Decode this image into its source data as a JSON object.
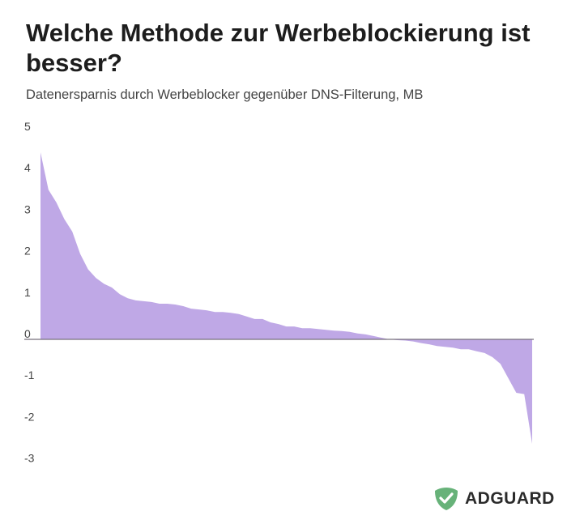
{
  "chart_data": {
    "type": "area",
    "title": "Welche Methode zur Werbeblockierung ist besser?",
    "subtitle": "Datenersparnis durch Werbeblocker gegenüber DNS-Filterung, MB",
    "xlabel": "",
    "ylabel": "",
    "ylim": [
      -3,
      5
    ],
    "yticks": [
      "5",
      "4",
      "3",
      "2",
      "1",
      "0",
      "-1",
      "-2",
      "-3"
    ],
    "grid": false,
    "color": "#bfa8e6",
    "baseline_color": "#77707c",
    "values": [
      4.51,
      3.61,
      3.3,
      2.9,
      2.6,
      2.06,
      1.69,
      1.48,
      1.34,
      1.25,
      1.09,
      0.99,
      0.94,
      0.92,
      0.9,
      0.86,
      0.86,
      0.84,
      0.8,
      0.74,
      0.72,
      0.7,
      0.66,
      0.66,
      0.64,
      0.61,
      0.55,
      0.49,
      0.49,
      0.41,
      0.37,
      0.31,
      0.31,
      0.27,
      0.27,
      0.25,
      0.23,
      0.21,
      0.2,
      0.18,
      0.14,
      0.12,
      0.08,
      0.04,
      0.0,
      -0.02,
      -0.03,
      -0.05,
      -0.09,
      -0.12,
      -0.16,
      -0.18,
      -0.2,
      -0.24,
      -0.24,
      -0.29,
      -0.33,
      -0.43,
      -0.59,
      -0.94,
      -1.29,
      -1.32,
      -2.52
    ]
  },
  "logo": {
    "text": "ADGUARD",
    "color": "#67b279"
  }
}
